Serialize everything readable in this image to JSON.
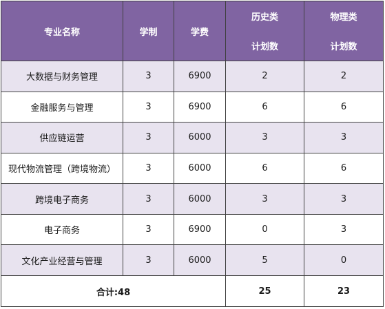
{
  "table": {
    "headers": {
      "major": "专业名称",
      "years": "学制",
      "fee": "学费",
      "history_line1": "历史类",
      "history_line2": "计划数",
      "physics_line1": "物理类",
      "physics_line2": "计划数"
    },
    "rows": [
      {
        "major": "大数据与财务管理",
        "years": "3",
        "fee": "6900",
        "history": "2",
        "physics": "2"
      },
      {
        "major": "金融服务与管理",
        "years": "3",
        "fee": "6900",
        "history": "6",
        "physics": "6"
      },
      {
        "major": "供应链运营",
        "years": "3",
        "fee": "6000",
        "history": "3",
        "physics": "3"
      },
      {
        "major": "现代物流管理（跨境物流）",
        "years": "3",
        "fee": "6000",
        "history": "6",
        "physics": "6"
      },
      {
        "major": "跨境电子商务",
        "years": "3",
        "fee": "6000",
        "history": "3",
        "physics": "3"
      },
      {
        "major": "电子商务",
        "years": "3",
        "fee": "6900",
        "history": "0",
        "physics": "3"
      },
      {
        "major": "文化产业经营与管理",
        "years": "3",
        "fee": "6000",
        "history": "5",
        "physics": "0"
      }
    ],
    "footer": {
      "total_label": "合计:48",
      "history_total": "25",
      "physics_total": "23"
    }
  },
  "colors": {
    "header_bg": "#8064a2",
    "alt_row_bg": "#e8e3ef"
  }
}
